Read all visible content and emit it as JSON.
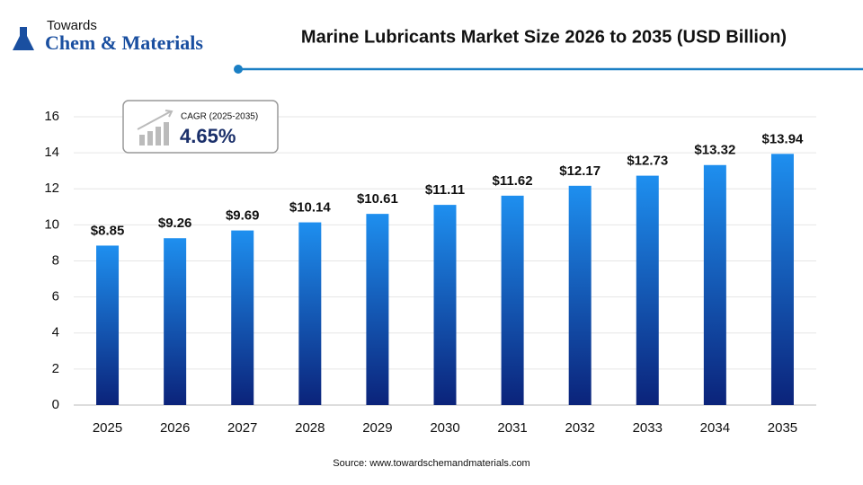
{
  "logo": {
    "top": "Towards",
    "bottom": "Chem & Materials"
  },
  "chart_data": {
    "type": "bar",
    "title": "Marine Lubricants Market Size 2026 to 2035 (USD Billion)",
    "categories": [
      "2025",
      "2026",
      "2027",
      "2028",
      "2029",
      "2030",
      "2031",
      "2032",
      "2033",
      "2034",
      "2035"
    ],
    "values": [
      8.85,
      9.26,
      9.69,
      10.14,
      10.61,
      11.11,
      11.62,
      12.17,
      12.73,
      13.32,
      13.94
    ],
    "value_labels": [
      "$8.85",
      "$9.26",
      "$9.69",
      "$10.14",
      "$10.61",
      "$11.11",
      "$11.62",
      "$12.17",
      "$12.73",
      "$13.32",
      "$13.94"
    ],
    "color": "#1a7fe0",
    "ylim": [
      0,
      16
    ],
    "yticks": [
      0,
      2,
      4,
      6,
      8,
      10,
      12,
      14,
      16
    ],
    "grid": true,
    "annotation": {
      "label": "CAGR (2025-2035)",
      "value": "4.65%"
    },
    "source": "Source: www.towardschemandmaterials.com"
  }
}
